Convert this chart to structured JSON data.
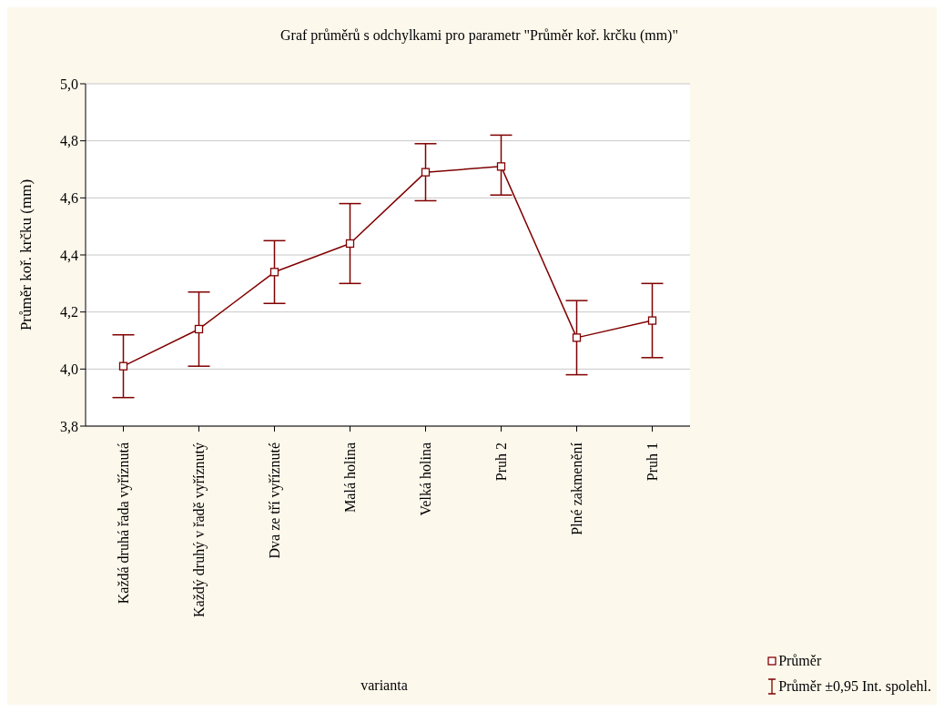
{
  "chart_data": {
    "type": "line",
    "title": "Graf průměrů s odchylkami pro parametr \"Průměr koř. krčku (mm)\"",
    "xlabel": "varianta",
    "ylabel": "Průměr koř. krčku (mm)",
    "categories": [
      "Každá druhá řada vyříznutá",
      "Každý druhý v řadě vyříznutý",
      "Dva ze tří vyříznuté",
      "Malá holina",
      "Velká holina",
      "Pruh 2",
      "Plné zakmenění",
      "Pruh 1"
    ],
    "series": [
      {
        "name": "Průměr",
        "color": "#800000",
        "values": [
          4.01,
          4.14,
          4.34,
          4.44,
          4.69,
          4.71,
          4.11,
          4.17
        ],
        "errors": [
          [
            3.9,
            4.12
          ],
          [
            4.01,
            4.27
          ],
          [
            4.23,
            4.45
          ],
          [
            4.3,
            4.58
          ],
          [
            4.59,
            4.79
          ],
          [
            4.61,
            4.82
          ],
          [
            3.98,
            4.24
          ],
          [
            4.04,
            4.3
          ]
        ]
      }
    ],
    "annotations": [
      "Průměr ±0,95 Int. spolehl."
    ],
    "ylim": [
      3.8,
      5.0
    ],
    "yticks": [
      {
        "value": 3.8,
        "label": "3,8"
      },
      {
        "value": 4.0,
        "label": "4,0"
      },
      {
        "value": 4.2,
        "label": "4,2"
      },
      {
        "value": 4.4,
        "label": "4,4"
      },
      {
        "value": 4.6,
        "label": "4,6"
      },
      {
        "value": 4.8,
        "label": "4,8"
      },
      {
        "value": 5.0,
        "label": "5,0"
      }
    ],
    "grid": "y",
    "legend": "bottom right",
    "marker": "square",
    "line_style": "solid"
  }
}
